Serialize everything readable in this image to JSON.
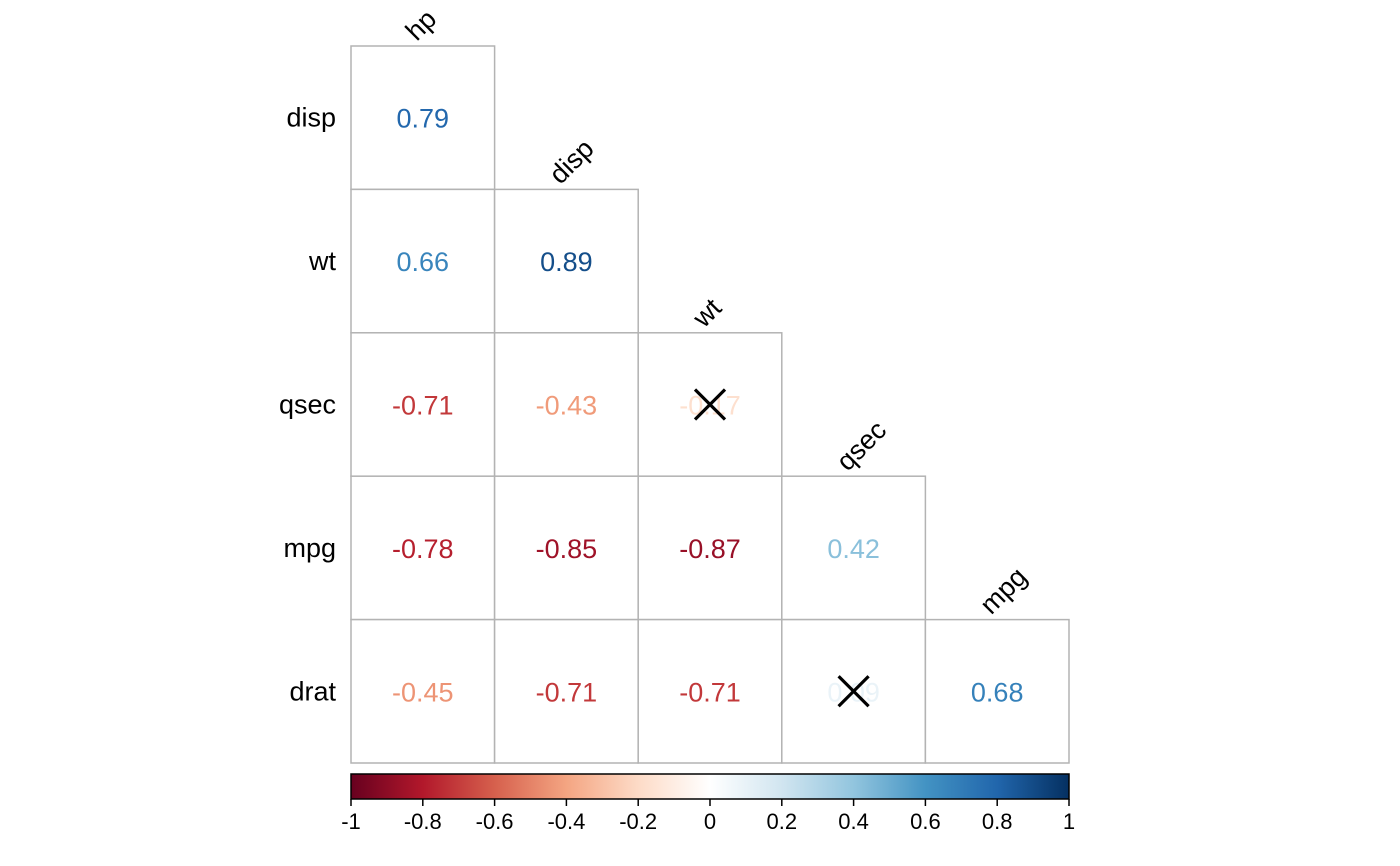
{
  "chart_data": {
    "type": "heatmap",
    "variant": "lower-triangular correlation matrix",
    "columns": [
      "hp",
      "disp",
      "wt",
      "qsec",
      "mpg"
    ],
    "rows": [
      "disp",
      "wt",
      "qsec",
      "mpg",
      "drat"
    ],
    "cells": [
      {
        "row": "disp",
        "col": "hp",
        "value": 0.79,
        "label": "0.79",
        "crossed": false
      },
      {
        "row": "wt",
        "col": "hp",
        "value": 0.66,
        "label": "0.66",
        "crossed": false
      },
      {
        "row": "wt",
        "col": "disp",
        "value": 0.89,
        "label": "0.89",
        "crossed": false
      },
      {
        "row": "qsec",
        "col": "hp",
        "value": -0.71,
        "label": "-0.71",
        "crossed": false
      },
      {
        "row": "qsec",
        "col": "disp",
        "value": -0.43,
        "label": "-0.43",
        "crossed": false
      },
      {
        "row": "qsec",
        "col": "wt",
        "value": -0.17,
        "label": "-0.17",
        "crossed": true
      },
      {
        "row": "mpg",
        "col": "hp",
        "value": -0.78,
        "label": "-0.78",
        "crossed": false
      },
      {
        "row": "mpg",
        "col": "disp",
        "value": -0.85,
        "label": "-0.85",
        "crossed": false
      },
      {
        "row": "mpg",
        "col": "wt",
        "value": -0.87,
        "label": "-0.87",
        "crossed": false
      },
      {
        "row": "mpg",
        "col": "qsec",
        "value": 0.42,
        "label": "0.42",
        "crossed": false
      },
      {
        "row": "drat",
        "col": "hp",
        "value": -0.45,
        "label": "-0.45",
        "crossed": false
      },
      {
        "row": "drat",
        "col": "disp",
        "value": -0.71,
        "label": "-0.71",
        "crossed": false
      },
      {
        "row": "drat",
        "col": "wt",
        "value": -0.71,
        "label": "-0.71",
        "crossed": false
      },
      {
        "row": "drat",
        "col": "qsec",
        "value": 0.09,
        "label": "0.09",
        "crossed": true
      },
      {
        "row": "drat",
        "col": "mpg",
        "value": 0.68,
        "label": "0.68",
        "crossed": false
      }
    ],
    "colorbar": {
      "range": [
        -1,
        1
      ],
      "tick_labels": [
        "-1",
        "-0.8",
        "-0.6",
        "-0.4",
        "-0.2",
        "0",
        "0.2",
        "0.4",
        "0.6",
        "0.8",
        "1"
      ],
      "colors": [
        "#67001f",
        "#b2182b",
        "#d6604d",
        "#f4a582",
        "#fddbc7",
        "#ffffff",
        "#d1e5f0",
        "#92c5de",
        "#4393c3",
        "#2166ac",
        "#053061"
      ]
    },
    "legend_placement": "bottom",
    "grid": false
  }
}
